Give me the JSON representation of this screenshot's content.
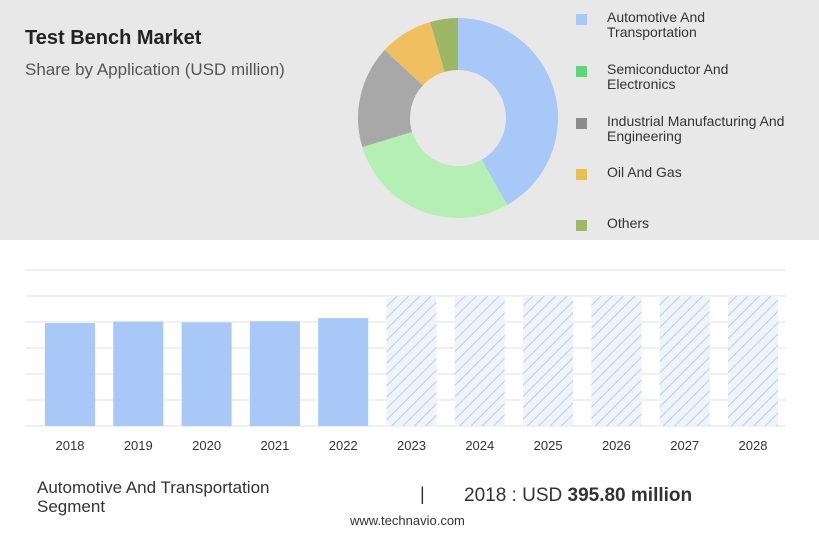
{
  "header": {
    "title": "Test Bench Market",
    "subtitle": "Share by Application (USD million)"
  },
  "chart_data": [
    {
      "type": "pie",
      "variant": "donut",
      "slices": [
        {
          "label": "Automotive And Transportation",
          "value": 41.8,
          "color": "#a8c8f8"
        },
        {
          "label": "Semiconductor And Electronics",
          "value": 28.5,
          "color": "#b4f0b4"
        },
        {
          "label": "Industrial Manufacturing And Engineering",
          "value": 16.6,
          "color": "#a8a8a8"
        },
        {
          "label": "Oil And Gas",
          "value": 8.6,
          "color": "#f0c060"
        },
        {
          "label": "Others",
          "value": 4.5,
          "color": "#9cb864"
        }
      ],
      "legend": [
        {
          "label": "Automotive And Transportation",
          "color": "#a8c8f8"
        },
        {
          "label": "Semiconductor And Electronics",
          "color": "#5cd87c"
        },
        {
          "label": "Industrial Manufacturing And Engineering",
          "color": "#8c8c8c"
        },
        {
          "label": "Oil And Gas",
          "color": "#e8c050"
        },
        {
          "label": "Others",
          "color": "#9cb864"
        }
      ],
      "legend_position": "right"
    },
    {
      "type": "bar",
      "categories": [
        "2018",
        "2019",
        "2020",
        "2021",
        "2022",
        "2023",
        "2024",
        "2025",
        "2026",
        "2027",
        "2028"
      ],
      "series": [
        {
          "values": [
            395.8,
            402,
            398,
            403,
            415,
            null,
            null,
            null,
            null,
            null,
            null
          ],
          "color": "#a8c8f8"
        }
      ],
      "forecast_categories": [
        "2023",
        "2024",
        "2025",
        "2026",
        "2027",
        "2028"
      ],
      "forecast_style": "hatched",
      "ylim": [
        0,
        600
      ],
      "grid": true
    }
  ],
  "footer": {
    "segment_label": "Automotive And Transportation Segment",
    "separator": "|",
    "year_prefix": "2018 : USD",
    "value": "395.80 million",
    "source": "www.technavio.com"
  }
}
